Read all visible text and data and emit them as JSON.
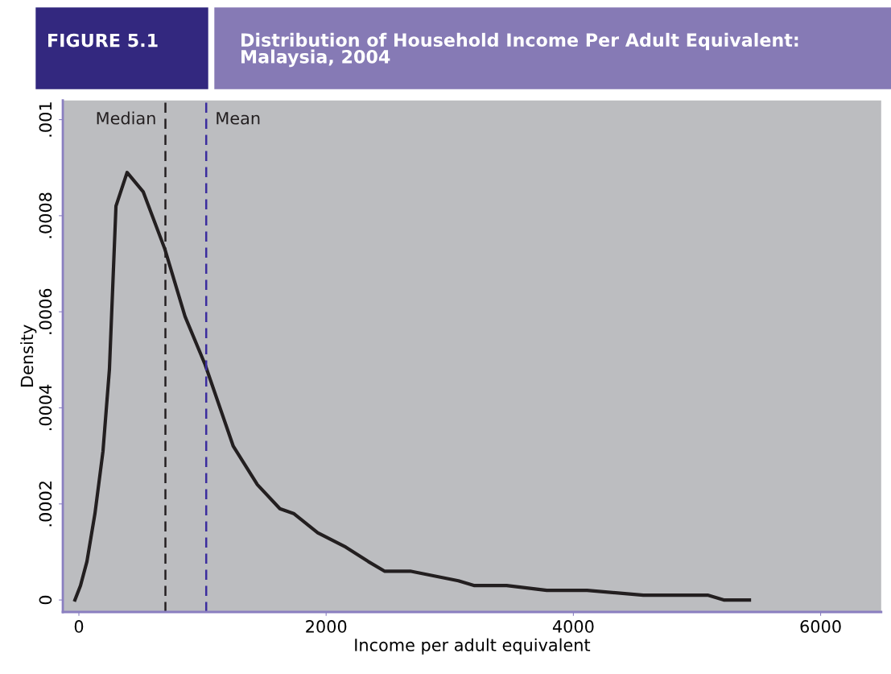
{
  "chart_data": {
    "type": "line",
    "title": "Distribution of Household Income Per Adult Equivalent: Malaysia, 2004",
    "annotations": [
      "FIGURE 5.1"
    ],
    "xlabel": "Income per adult equivalent",
    "ylabel": "Density",
    "x": [
      -32,
      13,
      65,
      130,
      195,
      247,
      300,
      390,
      520,
      696,
      859,
      1021,
      1249,
      1444,
      1626,
      1737,
      1932,
      2159,
      2341,
      2472,
      2680,
      2875,
      3070,
      3200,
      3460,
      3785,
      4111,
      4566,
      4956,
      5086,
      5216,
      5424
    ],
    "series": [
      {
        "color": "#231f20",
        "values": [
          0,
          3e-05,
          8e-05,
          0.00018,
          0.00031,
          0.00048,
          0.00082,
          0.00089,
          0.00085,
          0.00073,
          0.00059,
          0.00049,
          0.00032,
          0.00024,
          0.00019,
          0.00018,
          0.00014,
          0.00011,
          8e-05,
          6e-05,
          6e-05,
          5e-05,
          4e-05,
          3e-05,
          3e-05,
          2e-05,
          2e-05,
          1e-05,
          1e-05,
          1e-05,
          0,
          0
        ]
      }
    ],
    "xlim": [
      -130,
      6490
    ],
    "ylim": [
      -2.5e-05,
      0.00104
    ],
    "xticks": [
      0,
      2000,
      4000,
      6000
    ],
    "yticks": [
      {
        "value": 0,
        "label": "0"
      },
      {
        "value": 0.0002,
        "label": ".0002"
      },
      {
        "value": 0.0004,
        "label": ".0004"
      },
      {
        "value": 0.0006,
        "label": ".0006"
      },
      {
        "value": 0.0008,
        "label": ".0008"
      },
      {
        "value": 0.001,
        "label": ".001"
      }
    ],
    "ref_lines": [
      {
        "axis": "x",
        "value": 700,
        "label": "Median",
        "color": "#231f20",
        "line_style": "dashed"
      },
      {
        "axis": "x",
        "value": 1030,
        "label": "Mean",
        "color": "#3b2d9e",
        "line_style": "dashed"
      }
    ],
    "grid": false,
    "legend": false,
    "marker": "none",
    "line_style": "solid"
  }
}
